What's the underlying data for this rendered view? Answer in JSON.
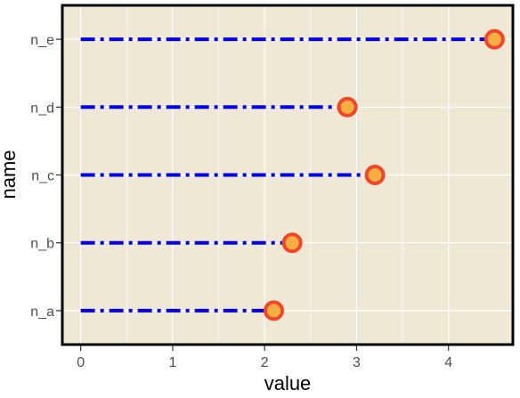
{
  "chart_data": {
    "type": "lollipop",
    "orientation": "horizontal",
    "categories": [
      "n_a",
      "n_b",
      "n_c",
      "n_d",
      "n_e"
    ],
    "values": [
      2.1,
      2.3,
      3.2,
      2.9,
      4.5
    ],
    "xlabel": "value",
    "ylabel": "name",
    "xlim": [
      -0.2,
      4.7
    ],
    "xticks": [
      "0",
      "1",
      "2",
      "3",
      "4"
    ],
    "grid": true,
    "colors": {
      "panel_background": "#EEE8D5",
      "grid": "#FFFFFF",
      "segment": "#0000EE",
      "point_outline": "#F54528",
      "point_fill": "#F5B041",
      "panel_border": "#000000"
    }
  }
}
